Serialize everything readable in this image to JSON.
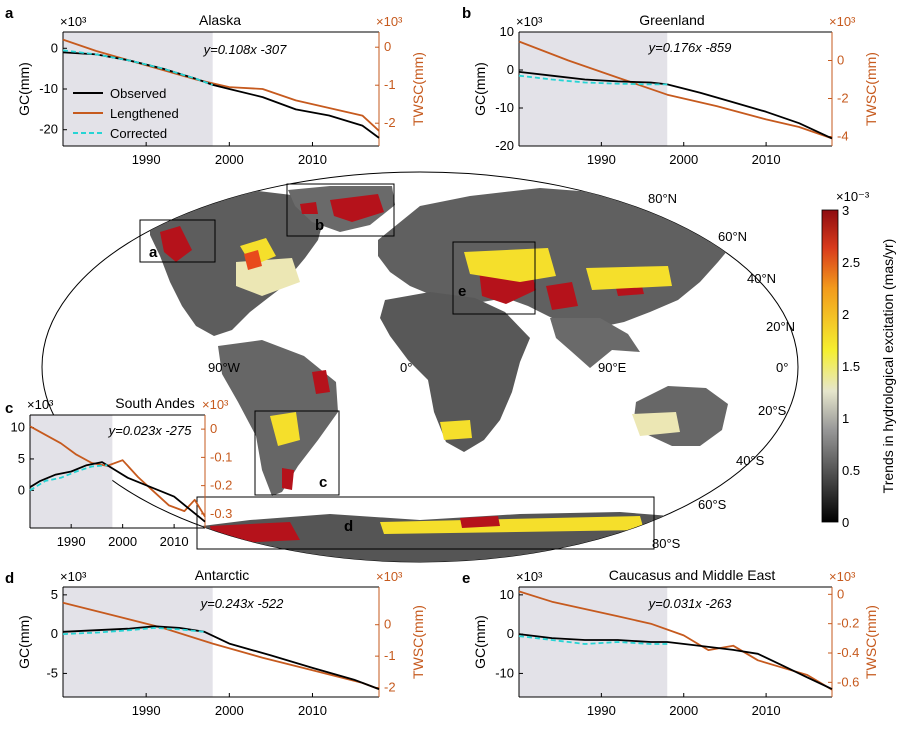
{
  "colors": {
    "observed": "#000000",
    "lengthened": "#c65a1e",
    "corrected": "#27d4d4",
    "shade": "#e3e2e8",
    "right_axis": "#c65a1e",
    "land_gray": "#5a5a5a",
    "hotspot": "#b5121b"
  },
  "legend": [
    "Observed",
    "Lengthened",
    "Corrected"
  ],
  "chart_data": [
    {
      "id": "a",
      "type": "line",
      "title": "Alaska",
      "equation": "y=0.108x -307",
      "ylabel_left": "GC(mm)",
      "ylabel_right": "TWSC(mm)",
      "left_exponent": "×10³",
      "right_exponent": "×10³",
      "xlim": [
        1980,
        2018
      ],
      "ylim_left": [
        -24,
        4
      ],
      "ylim_right": [
        -2.6,
        0.4
      ],
      "xticks": [
        1990,
        2000,
        2010
      ],
      "yticks_left": [
        -20,
        -10,
        0
      ],
      "yticks_right": [
        -2,
        -1,
        0
      ],
      "shade": [
        1980,
        1998
      ],
      "series": [
        {
          "name": "Observed",
          "axis": "left",
          "x": [
            1980,
            1984,
            1988,
            1992,
            1996,
            1998,
            2000,
            2004,
            2008,
            2012,
            2016,
            2018
          ],
          "y": [
            -1,
            -1.5,
            -3,
            -5,
            -7.5,
            -9,
            -10,
            -12,
            -15,
            -16.5,
            -19,
            -22
          ]
        },
        {
          "name": "Lengthened",
          "axis": "right",
          "x": [
            1980,
            1984,
            1988,
            1992,
            1996,
            2000,
            2004,
            2008,
            2012,
            2016,
            2018
          ],
          "y": [
            0.2,
            -0.1,
            -0.35,
            -0.6,
            -0.85,
            -1.05,
            -1.1,
            -1.4,
            -1.6,
            -1.8,
            -2.2
          ]
        },
        {
          "name": "Corrected",
          "axis": "left",
          "x": [
            1980,
            1984,
            1988,
            1992,
            1996,
            1998
          ],
          "y": [
            -0.5,
            -1.5,
            -3,
            -5,
            -7.5,
            -9
          ]
        }
      ]
    },
    {
      "id": "b",
      "type": "line",
      "title": "Greenland",
      "equation": "y=0.176x -859",
      "ylabel_left": "GC(mm)",
      "ylabel_right": "TWSC(mm)",
      "left_exponent": "×10³",
      "right_exponent": "×10³",
      "xlim": [
        1980,
        2018
      ],
      "ylim_left": [
        -20,
        10
      ],
      "ylim_right": [
        -4.5,
        1.5
      ],
      "xticks": [
        1990,
        2000,
        2010
      ],
      "yticks_left": [
        -20,
        -10,
        0,
        10
      ],
      "yticks_right": [
        -4,
        -2,
        0
      ],
      "shade": [
        1980,
        1998
      ],
      "series": [
        {
          "name": "Observed",
          "axis": "left",
          "x": [
            1980,
            1984,
            1988,
            1992,
            1996,
            1998,
            2002,
            2006,
            2010,
            2014,
            2018
          ],
          "y": [
            -0.5,
            -1.5,
            -2.5,
            -3,
            -3.3,
            -3.8,
            -6,
            -8.5,
            -11,
            -14,
            -18
          ]
        },
        {
          "name": "Lengthened",
          "axis": "right",
          "x": [
            1980,
            1986,
            1992,
            1998,
            2004,
            2010,
            2014,
            2018
          ],
          "y": [
            1,
            0,
            -0.9,
            -1.8,
            -2.4,
            -3.1,
            -3.5,
            -4.1
          ]
        },
        {
          "name": "Corrected",
          "axis": "left",
          "x": [
            1980,
            1984,
            1988,
            1992,
            1996,
            1998
          ],
          "y": [
            -1.5,
            -2.5,
            -3.3,
            -3.6,
            -3.8,
            -3.8
          ]
        }
      ]
    },
    {
      "id": "c",
      "type": "line",
      "title": "South Andes",
      "equation": "y=0.023x -275",
      "left_exponent": "×10³",
      "right_exponent": "×10³",
      "xlim": [
        1982,
        2016
      ],
      "ylim_left": [
        -6,
        12
      ],
      "ylim_right": [
        -0.35,
        0.05
      ],
      "xticks": [
        1990,
        2000,
        2010
      ],
      "yticks_left": [
        0,
        5,
        10
      ],
      "yticks_right": [
        -0.3,
        -0.2,
        -0.1,
        0
      ],
      "shade": [
        1982,
        1998
      ],
      "series": [
        {
          "name": "Observed",
          "axis": "left",
          "x": [
            1982,
            1984,
            1987,
            1990,
            1993,
            1996,
            1998,
            2001,
            2004,
            2007,
            2010,
            2013,
            2016
          ],
          "y": [
            0.5,
            1.5,
            2.5,
            3,
            4,
            4.5,
            3.5,
            2,
            1,
            0,
            -1,
            -3,
            -5
          ]
        },
        {
          "name": "Lengthened",
          "axis": "right",
          "x": [
            1982,
            1985,
            1988,
            1991,
            1994,
            1997,
            2000,
            2003,
            2006,
            2009,
            2012,
            2014,
            2016
          ],
          "y": [
            0.01,
            -0.02,
            -0.05,
            -0.09,
            -0.12,
            -0.13,
            -0.11,
            -0.17,
            -0.22,
            -0.27,
            -0.29,
            -0.25,
            -0.31
          ]
        },
        {
          "name": "Corrected",
          "axis": "left",
          "x": [
            1982,
            1985,
            1988,
            1991,
            1994,
            1997
          ],
          "y": [
            0,
            1.5,
            2,
            3,
            3.8,
            4
          ]
        }
      ]
    },
    {
      "id": "d",
      "type": "line",
      "title": "Antarctic",
      "equation": "y=0.243x -522",
      "ylabel_left": "GC(mm)",
      "ylabel_right": "TWSC(mm)",
      "left_exponent": "×10³",
      "right_exponent": "×10³",
      "xlim": [
        1980,
        2018
      ],
      "ylim_left": [
        -8,
        6
      ],
      "ylim_right": [
        -2.3,
        1.2
      ],
      "xticks": [
        1990,
        2000,
        2010
      ],
      "yticks_left": [
        -5,
        0,
        5
      ],
      "yticks_right": [
        -2,
        -1,
        0
      ],
      "shade": [
        1980,
        1998
      ],
      "series": [
        {
          "name": "Observed",
          "axis": "left",
          "x": [
            1980,
            1984,
            1988,
            1991,
            1994,
            1997,
            2000,
            2005,
            2010,
            2015,
            2018
          ],
          "y": [
            0.3,
            0.5,
            0.7,
            1,
            0.8,
            0.3,
            -1.2,
            -2.7,
            -4.3,
            -5.8,
            -7
          ]
        },
        {
          "name": "Lengthened",
          "axis": "right",
          "x": [
            1980,
            1986,
            1992,
            1998,
            2004,
            2010,
            2016,
            2018
          ],
          "y": [
            0.7,
            0.3,
            -0.1,
            -0.6,
            -1.05,
            -1.45,
            -1.85,
            -2.05
          ]
        },
        {
          "name": "Corrected",
          "axis": "left",
          "x": [
            1980,
            1984,
            1988,
            1991,
            1994,
            1997
          ],
          "y": [
            0,
            0.2,
            0.5,
            0.8,
            0.6,
            0.3
          ]
        }
      ]
    },
    {
      "id": "e",
      "type": "line",
      "title": "Caucasus and Middle East",
      "equation": "y=0.031x -263",
      "ylabel_left": "GC(mm)",
      "ylabel_right": "TWSC(mm)",
      "left_exponent": "×10³",
      "right_exponent": "×10³",
      "xlim": [
        1980,
        2018
      ],
      "ylim_left": [
        -16,
        12
      ],
      "ylim_right": [
        -0.7,
        0.05
      ],
      "xticks": [
        1990,
        2000,
        2010
      ],
      "yticks_left": [
        -10,
        0,
        10
      ],
      "yticks_right": [
        -0.6,
        -0.4,
        -0.2,
        0
      ],
      "shade": [
        1980,
        1998
      ],
      "series": [
        {
          "name": "Observed",
          "axis": "left",
          "x": [
            1980,
            1984,
            1988,
            1992,
            1996,
            1998,
            2002,
            2006,
            2009,
            2012,
            2015,
            2018
          ],
          "y": [
            0,
            -1,
            -1.5,
            -1.5,
            -2,
            -2,
            -3,
            -4,
            -5,
            -8,
            -11,
            -14
          ]
        },
        {
          "name": "Lengthened",
          "axis": "right",
          "x": [
            1980,
            1984,
            1988,
            1992,
            1996,
            2000,
            2003,
            2006,
            2009,
            2012,
            2015,
            2018
          ],
          "y": [
            0.02,
            -0.05,
            -0.1,
            -0.15,
            -0.2,
            -0.28,
            -0.38,
            -0.35,
            -0.45,
            -0.5,
            -0.55,
            -0.65
          ]
        },
        {
          "name": "Corrected",
          "axis": "left",
          "x": [
            1980,
            1984,
            1988,
            1992,
            1996,
            1998
          ],
          "y": [
            -0.5,
            -1.5,
            -2.5,
            -2,
            -2.5,
            -2.5
          ]
        }
      ]
    }
  ],
  "map": {
    "colorbar": {
      "label": "Trends in hydrological excitation (mas/yr)",
      "exponent": "×10⁻³",
      "range": [
        0,
        3
      ],
      "ticks": [
        "0",
        "0.5",
        "1",
        "1.5",
        "2",
        "2.5",
        "3"
      ]
    },
    "lat_labels": [
      "80°N",
      "60°N",
      "40°N",
      "20°N",
      "0°",
      "20°S",
      "40°S",
      "60°S",
      "80°S"
    ],
    "lon_labels": [
      "90°W",
      "0°",
      "90°E"
    ],
    "region_labels": [
      "a",
      "b",
      "c",
      "d",
      "e"
    ]
  }
}
